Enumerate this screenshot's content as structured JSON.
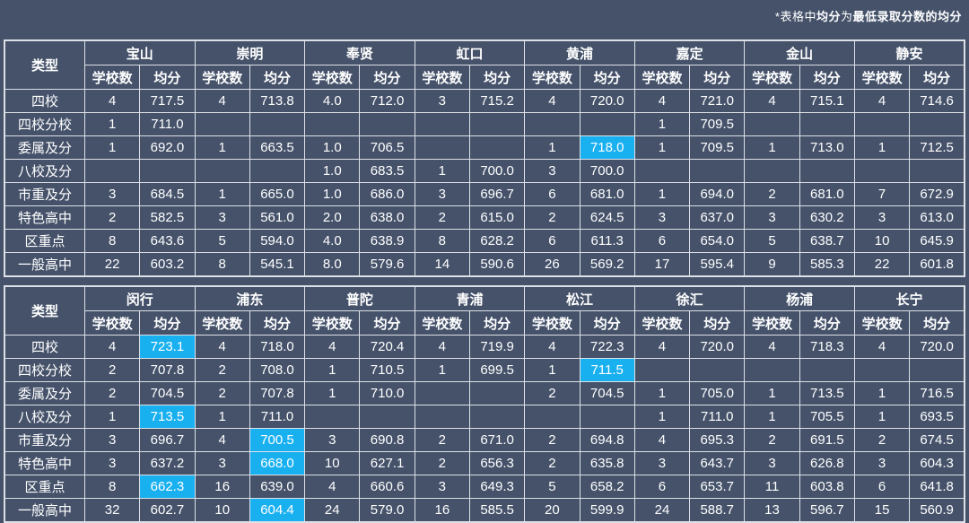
{
  "colors": {
    "page_background": "#45526a",
    "grid_line": "#dde1e7",
    "text": "#ffffff",
    "highlight_cell": "#19b0f0"
  },
  "note": {
    "segments": [
      {
        "text": "*表格中",
        "bold": false
      },
      {
        "text": "均分",
        "bold": true
      },
      {
        "text": "为",
        "bold": false
      },
      {
        "text": "最低录取分数的均分",
        "bold": true
      }
    ]
  },
  "labels": {
    "type": "类型",
    "school_count": "学校数",
    "avg_score": "均分"
  },
  "chart_data": [
    {
      "type": "table",
      "name": "upper-table",
      "districts": [
        "宝山",
        "崇明",
        "奉贤",
        "虹口",
        "黄浦",
        "嘉定",
        "金山",
        "静安"
      ],
      "rows": [
        {
          "label": "四校",
          "cells": [
            [
              "4",
              "717.5"
            ],
            [
              "4",
              "713.8"
            ],
            [
              "4.0",
              "712.0"
            ],
            [
              "3",
              "715.2"
            ],
            [
              "4",
              "720.0"
            ],
            [
              "4",
              "721.0"
            ],
            [
              "4",
              "715.1"
            ],
            [
              "4",
              "714.6"
            ]
          ]
        },
        {
          "label": "四校分校",
          "cells": [
            [
              "1",
              "711.0"
            ],
            [
              "",
              ""
            ],
            [
              "",
              ""
            ],
            [
              "",
              ""
            ],
            [
              "",
              ""
            ],
            [
              "1",
              "709.5"
            ],
            [
              "",
              ""
            ],
            [
              "",
              ""
            ]
          ]
        },
        {
          "label": "委属及分",
          "cells": [
            [
              "1",
              "692.0"
            ],
            [
              "1",
              "663.5"
            ],
            [
              "1.0",
              "706.5"
            ],
            [
              "",
              ""
            ],
            [
              "1",
              "718.0"
            ],
            [
              "1",
              "709.5"
            ],
            [
              "1",
              "713.0"
            ],
            [
              "1",
              "712.5"
            ]
          ]
        },
        {
          "label": "八校及分",
          "cells": [
            [
              "",
              ""
            ],
            [
              "",
              ""
            ],
            [
              "1.0",
              "683.5"
            ],
            [
              "1",
              "700.0"
            ],
            [
              "3",
              "700.0"
            ],
            [
              "",
              ""
            ],
            [
              "",
              ""
            ],
            [
              "",
              ""
            ]
          ]
        },
        {
          "label": "市重及分",
          "cells": [
            [
              "3",
              "684.5"
            ],
            [
              "1",
              "665.0"
            ],
            [
              "1.0",
              "686.0"
            ],
            [
              "3",
              "696.7"
            ],
            [
              "6",
              "681.0"
            ],
            [
              "1",
              "694.0"
            ],
            [
              "2",
              "681.0"
            ],
            [
              "7",
              "672.9"
            ]
          ]
        },
        {
          "label": "特色高中",
          "cells": [
            [
              "2",
              "582.5"
            ],
            [
              "3",
              "561.0"
            ],
            [
              "2.0",
              "638.0"
            ],
            [
              "2",
              "615.0"
            ],
            [
              "2",
              "624.5"
            ],
            [
              "3",
              "637.0"
            ],
            [
              "3",
              "630.2"
            ],
            [
              "3",
              "613.0"
            ]
          ]
        },
        {
          "label": "区重点",
          "cells": [
            [
              "8",
              "643.6"
            ],
            [
              "5",
              "594.0"
            ],
            [
              "4.0",
              "638.9"
            ],
            [
              "8",
              "628.2"
            ],
            [
              "6",
              "611.3"
            ],
            [
              "6",
              "654.0"
            ],
            [
              "5",
              "638.7"
            ],
            [
              "10",
              "645.9"
            ]
          ]
        },
        {
          "label": "一般高中",
          "cells": [
            [
              "22",
              "603.2"
            ],
            [
              "8",
              "545.1"
            ],
            [
              "8.0",
              "579.6"
            ],
            [
              "14",
              "590.6"
            ],
            [
              "26",
              "569.2"
            ],
            [
              "17",
              "595.4"
            ],
            [
              "9",
              "585.3"
            ],
            [
              "22",
              "601.8"
            ]
          ]
        }
      ],
      "highlights": [
        [
          2,
          4
        ]
      ]
    },
    {
      "type": "table",
      "name": "lower-table",
      "districts": [
        "闵行",
        "浦东",
        "普陀",
        "青浦",
        "松江",
        "徐汇",
        "杨浦",
        "长宁"
      ],
      "rows": [
        {
          "label": "四校",
          "cells": [
            [
              "4",
              "723.1"
            ],
            [
              "4",
              "718.0"
            ],
            [
              "4",
              "720.4"
            ],
            [
              "4",
              "719.9"
            ],
            [
              "4",
              "722.3"
            ],
            [
              "4",
              "720.0"
            ],
            [
              "4",
              "718.3"
            ],
            [
              "4",
              "720.0"
            ]
          ]
        },
        {
          "label": "四校分校",
          "cells": [
            [
              "2",
              "707.8"
            ],
            [
              "2",
              "708.0"
            ],
            [
              "1",
              "710.5"
            ],
            [
              "1",
              "699.5"
            ],
            [
              "1",
              "711.5"
            ],
            [
              "",
              ""
            ],
            [
              "",
              ""
            ],
            [
              "",
              ""
            ]
          ]
        },
        {
          "label": "委属及分",
          "cells": [
            [
              "2",
              "704.5"
            ],
            [
              "2",
              "707.8"
            ],
            [
              "1",
              "710.0"
            ],
            [
              "",
              ""
            ],
            [
              "2",
              "704.5"
            ],
            [
              "1",
              "705.0"
            ],
            [
              "1",
              "713.5"
            ],
            [
              "1",
              "716.5"
            ]
          ]
        },
        {
          "label": "八校及分",
          "cells": [
            [
              "1",
              "713.5"
            ],
            [
              "1",
              "711.0"
            ],
            [
              "",
              ""
            ],
            [
              "",
              ""
            ],
            [
              "",
              ""
            ],
            [
              "1",
              "711.0"
            ],
            [
              "1",
              "705.5"
            ],
            [
              "1",
              "693.5"
            ]
          ]
        },
        {
          "label": "市重及分",
          "cells": [
            [
              "3",
              "696.7"
            ],
            [
              "4",
              "700.5"
            ],
            [
              "3",
              "690.8"
            ],
            [
              "2",
              "671.0"
            ],
            [
              "2",
              "694.8"
            ],
            [
              "4",
              "695.3"
            ],
            [
              "2",
              "691.5"
            ],
            [
              "2",
              "674.5"
            ]
          ]
        },
        {
          "label": "特色高中",
          "cells": [
            [
              "3",
              "637.2"
            ],
            [
              "3",
              "668.0"
            ],
            [
              "10",
              "627.1"
            ],
            [
              "2",
              "656.3"
            ],
            [
              "2",
              "635.8"
            ],
            [
              "3",
              "643.7"
            ],
            [
              "3",
              "626.8"
            ],
            [
              "3",
              "604.3"
            ]
          ]
        },
        {
          "label": "区重点",
          "cells": [
            [
              "8",
              "662.3"
            ],
            [
              "16",
              "639.0"
            ],
            [
              "4",
              "660.6"
            ],
            [
              "3",
              "649.3"
            ],
            [
              "5",
              "658.2"
            ],
            [
              "6",
              "653.7"
            ],
            [
              "11",
              "603.8"
            ],
            [
              "6",
              "641.8"
            ]
          ]
        },
        {
          "label": "一般高中",
          "cells": [
            [
              "32",
              "602.7"
            ],
            [
              "10",
              "604.4"
            ],
            [
              "24",
              "579.0"
            ],
            [
              "16",
              "585.5"
            ],
            [
              "20",
              "599.9"
            ],
            [
              "24",
              "588.7"
            ],
            [
              "13",
              "596.7"
            ],
            [
              "15",
              "560.9"
            ]
          ]
        }
      ],
      "highlights": [
        [
          0,
          0
        ],
        [
          1,
          4
        ],
        [
          3,
          0
        ],
        [
          4,
          1
        ],
        [
          5,
          1
        ],
        [
          6,
          0
        ],
        [
          7,
          1
        ]
      ]
    }
  ]
}
